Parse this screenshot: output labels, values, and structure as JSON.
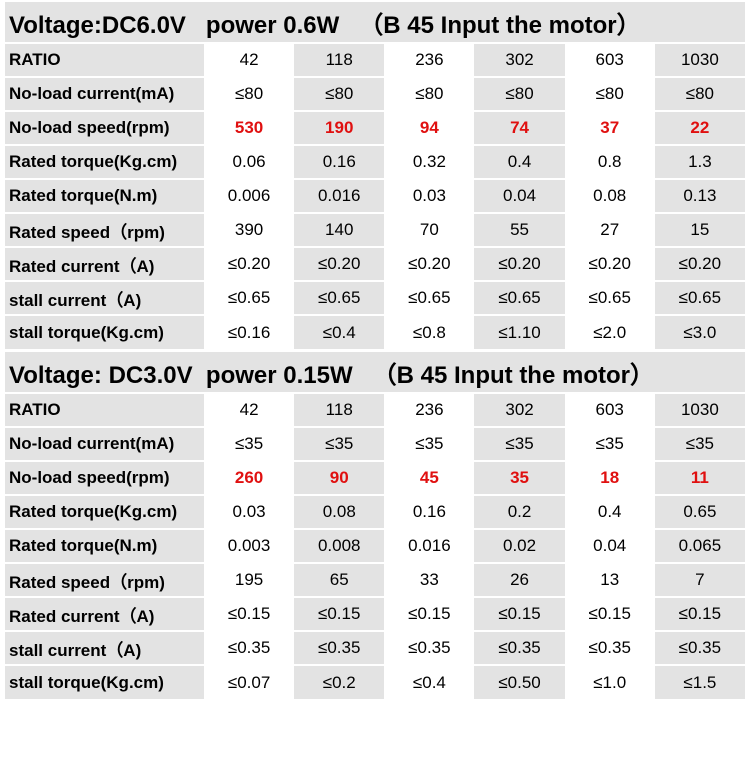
{
  "sections": [
    {
      "title": "Voltage:DC6.0V   power 0.6W   （B 45 Input the motor）",
      "rows": [
        [
          "RATIO",
          "42",
          "118",
          "236",
          "302",
          "603",
          "1030"
        ],
        [
          "No-load current(mA)",
          "≤80",
          "≤80",
          "≤80",
          "≤80",
          "≤80",
          "≤80"
        ],
        [
          "No-load speed(rpm)",
          "530",
          "190",
          "94",
          "74",
          "37",
          "22"
        ],
        [
          "Rated torque(Kg.cm)",
          "0.06",
          "0.16",
          "0.32",
          "0.4",
          "0.8",
          "1.3"
        ],
        [
          "Rated torque(N.m)",
          "0.006",
          "0.016",
          "0.03",
          "0.04",
          "0.08",
          "0.13"
        ],
        [
          "Rated speed（rpm)",
          "390",
          "140",
          "70",
          "55",
          "27",
          "15"
        ],
        [
          "Rated current（A)",
          "≤0.20",
          "≤0.20",
          "≤0.20",
          "≤0.20",
          "≤0.20",
          "≤0.20"
        ],
        [
          "stall current（A)",
          "≤0.65",
          "≤0.65",
          "≤0.65",
          "≤0.65",
          "≤0.65",
          "≤0.65"
        ],
        [
          "stall torque(Kg.cm)",
          "≤0.16",
          "≤0.4",
          "≤0.8",
          "≤1.10",
          "≤2.0",
          "≤3.0"
        ]
      ]
    },
    {
      "title": "Voltage: DC3.0V  power 0.15W   （B 45 Input the motor）",
      "rows": [
        [
          "RATIO",
          "42",
          "118",
          "236",
          "302",
          "603",
          "1030"
        ],
        [
          "No-load current(mA)",
          "≤35",
          "≤35",
          "≤35",
          "≤35",
          "≤35",
          "≤35"
        ],
        [
          "No-load speed(rpm)",
          "260",
          "90",
          "45",
          "35",
          "18",
          "11"
        ],
        [
          "Rated torque(Kg.cm)",
          "0.03",
          "0.08",
          "0.16",
          "0.2",
          "0.4",
          "0.65"
        ],
        [
          "Rated torque(N.m)",
          "0.003",
          "0.008",
          "0.016",
          "0.02",
          "0.04",
          "0.065"
        ],
        [
          "Rated speed（rpm)",
          "195",
          "65",
          "33",
          "26",
          "13",
          "7"
        ],
        [
          "Rated current（A)",
          "≤0.15",
          "≤0.15",
          "≤0.15",
          "≤0.15",
          "≤0.15",
          "≤0.15"
        ],
        [
          "stall current（A)",
          "≤0.35",
          "≤0.35",
          "≤0.35",
          "≤0.35",
          "≤0.35",
          "≤0.35"
        ],
        [
          "stall torque(Kg.cm)",
          "≤0.07",
          "≤0.2",
          "≤0.4",
          "≤0.50",
          "≤1.0",
          "≤1.5"
        ]
      ]
    }
  ]
}
